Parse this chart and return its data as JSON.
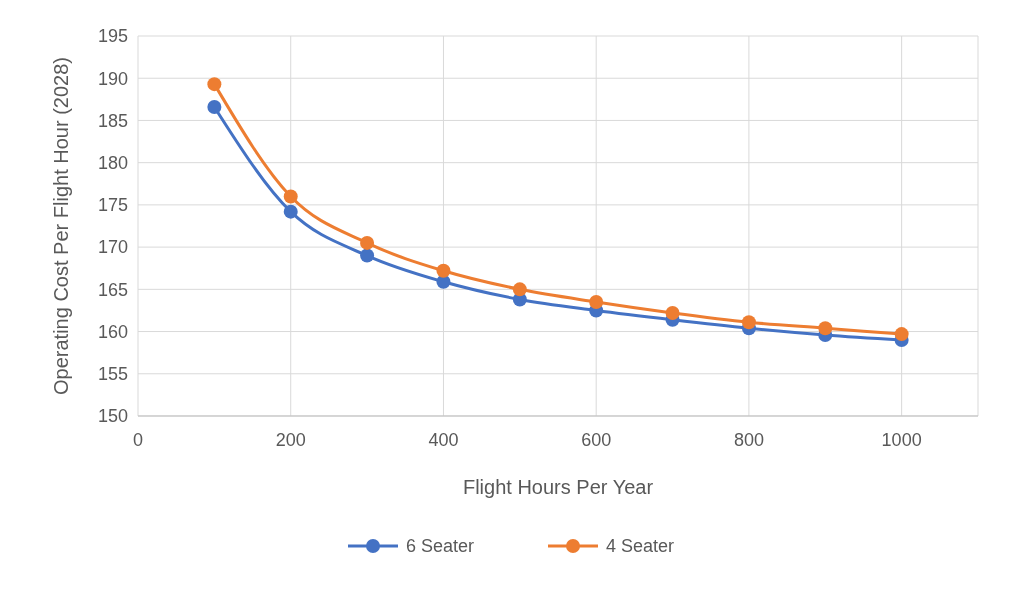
{
  "chart_data": {
    "type": "line",
    "xlabel": "Flight Hours Per Year",
    "ylabel": "Operating Cost Per Flight Hour (2028)",
    "x": [
      100,
      200,
      300,
      400,
      500,
      600,
      700,
      800,
      900,
      1000
    ],
    "series": [
      {
        "name": "6 Seater",
        "color": "#4472c4",
        "values": [
          186.6,
          174.2,
          169.0,
          165.9,
          163.8,
          162.5,
          161.4,
          160.4,
          159.6,
          159.0
        ]
      },
      {
        "name": "4 Seater",
        "color": "#ed7d31",
        "values": [
          189.3,
          176.0,
          170.5,
          167.2,
          165.0,
          163.5,
          162.2,
          161.1,
          160.4,
          159.7
        ]
      }
    ],
    "xlim": [
      0,
      1100
    ],
    "xticks": [
      0,
      200,
      400,
      600,
      800,
      1000
    ],
    "ylim": [
      150,
      195
    ],
    "yticks": [
      150,
      155,
      160,
      165,
      170,
      175,
      180,
      185,
      190,
      195
    ],
    "grid": true,
    "legend": "bottom",
    "marker": "circle",
    "line_style": "solid"
  }
}
